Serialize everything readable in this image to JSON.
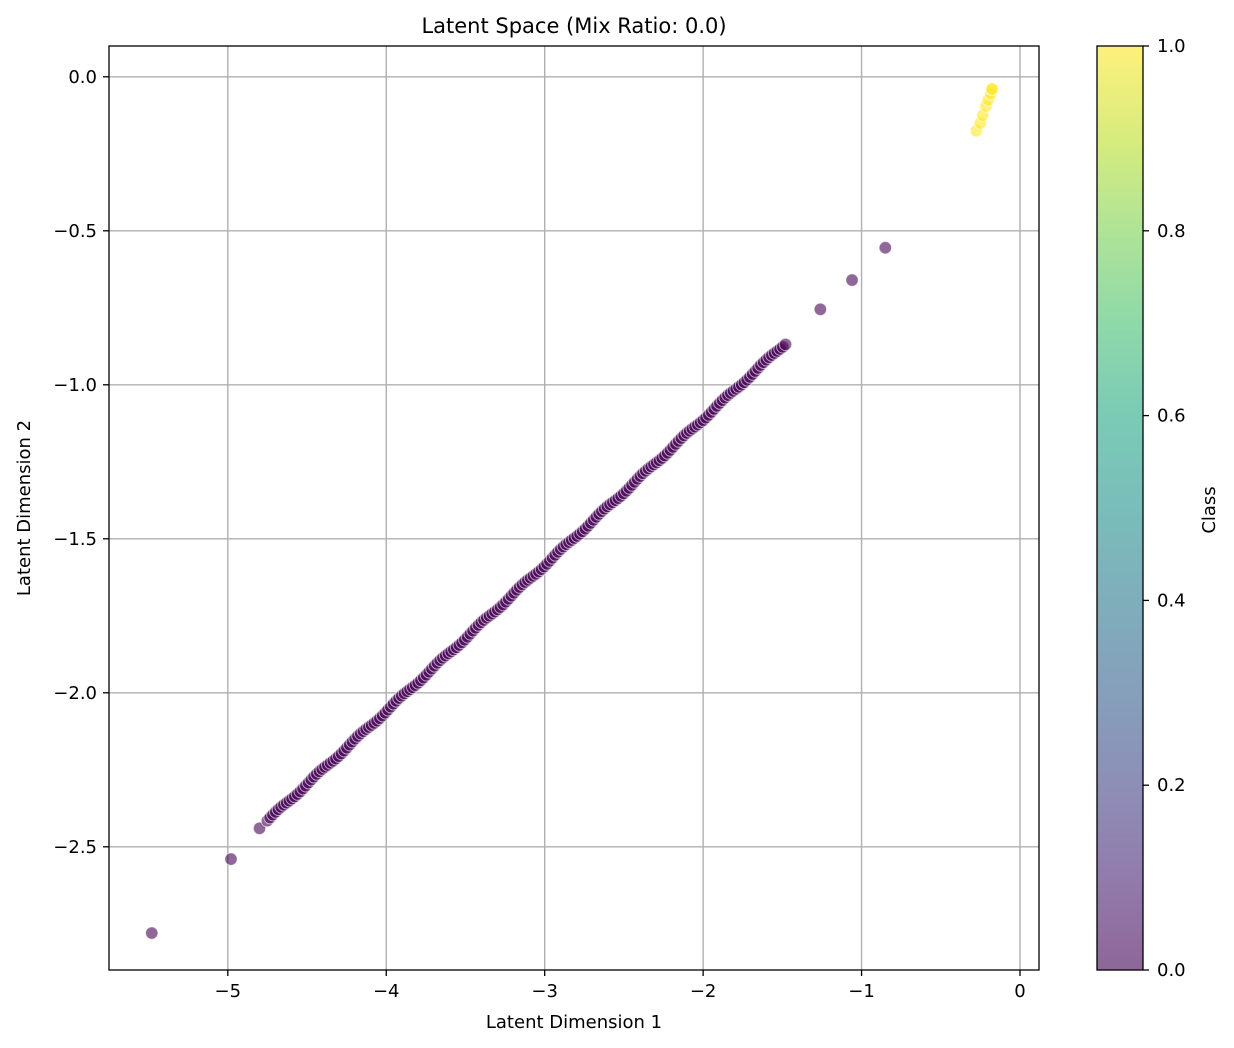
{
  "chart_data": {
    "type": "scatter",
    "title": "Latent Space (Mix Ratio: 0.0)",
    "xlabel": "Latent Dimension 1",
    "ylabel": "Latent Dimension 2",
    "xlim": [
      -5.75,
      0.12
    ],
    "ylim": [
      -2.9,
      0.1
    ],
    "xticks": [
      -5,
      -4,
      -3,
      -2,
      -1,
      0
    ],
    "yticks": [
      0.0,
      -0.5,
      -1.0,
      -1.5,
      -2.0,
      -2.5
    ],
    "xtick_labels": [
      "−5",
      "−4",
      "−3",
      "−2",
      "−1",
      "0"
    ],
    "ytick_labels": [
      "0.0",
      "−0.5",
      "−1.0",
      "−1.5",
      "−2.0",
      "−2.5"
    ],
    "grid": true,
    "colormap": "viridis",
    "point_alpha": 0.6,
    "colorbar": {
      "label": "Class",
      "range": [
        0.0,
        1.0
      ],
      "ticks": [
        0.0,
        0.2,
        0.4,
        0.6,
        0.8,
        1.0
      ],
      "tick_labels": [
        "0.0",
        "0.2",
        "0.4",
        "0.6",
        "0.8",
        "1.0"
      ]
    },
    "series": [
      {
        "class": 0,
        "color": "#440154",
        "points": [
          [
            -5.48,
            -2.78
          ],
          [
            -4.98,
            -2.54
          ],
          [
            -4.8,
            -2.44
          ],
          [
            -1.26,
            -0.755
          ],
          [
            -1.06,
            -0.66
          ],
          [
            -0.85,
            -0.555
          ]
        ],
        "dense_segment": {
          "x_start": -4.75,
          "x_end": -1.48,
          "y_start": -2.415,
          "y_end": -0.865,
          "count": 190
        }
      },
      {
        "class": 1,
        "color": "#fde725",
        "points": [
          [
            -0.275,
            -0.175
          ],
          [
            -0.25,
            -0.15
          ],
          [
            -0.235,
            -0.125
          ],
          [
            -0.215,
            -0.095
          ],
          [
            -0.2,
            -0.075
          ],
          [
            -0.185,
            -0.055
          ],
          [
            -0.18,
            -0.04
          ],
          [
            -0.175,
            -0.04
          ]
        ]
      }
    ]
  }
}
